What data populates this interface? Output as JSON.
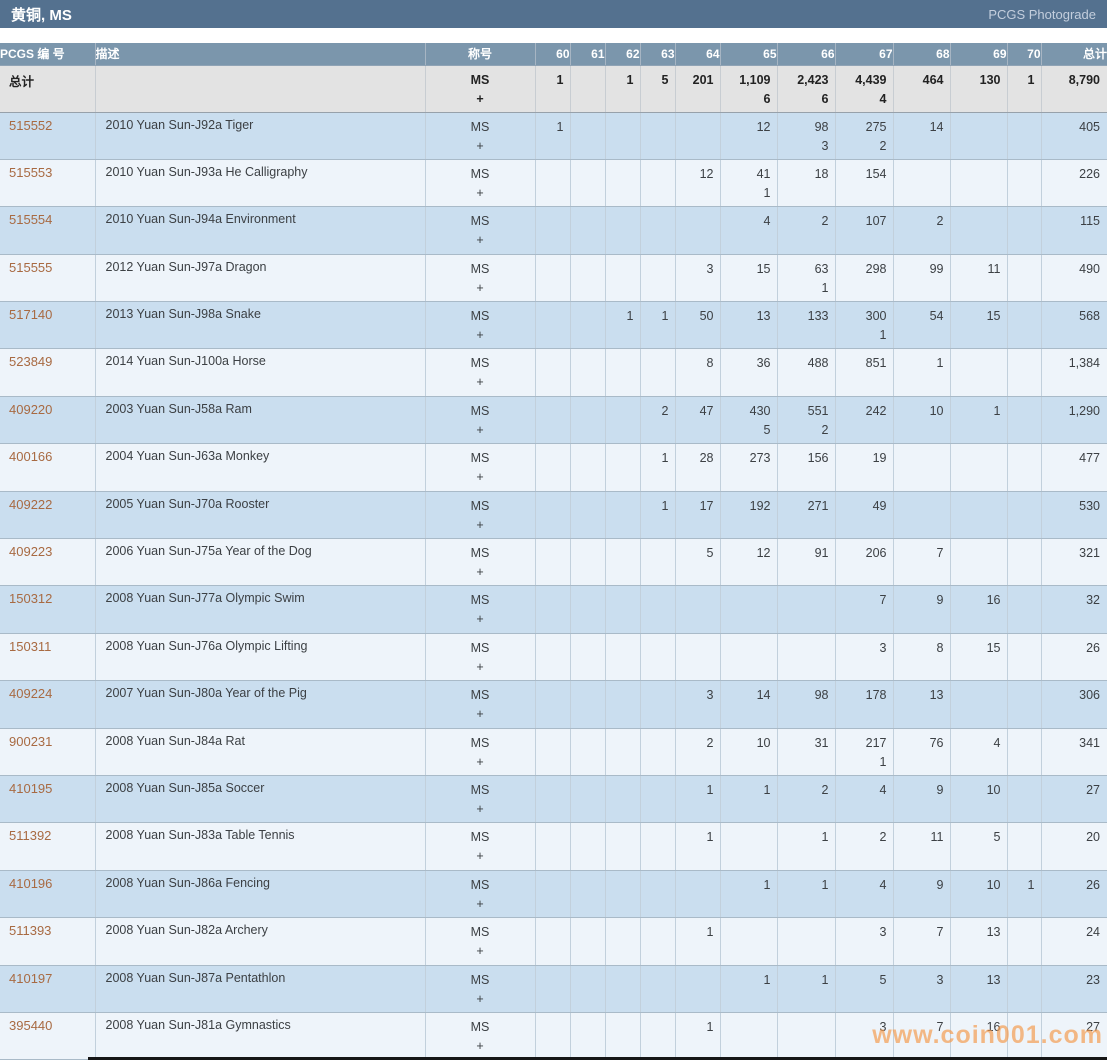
{
  "title_bar": {
    "title": "黄铜, MS",
    "link_label": "PCGS Photograde"
  },
  "colors": {
    "title_bar_bg": "#54718f",
    "header_bg": "#7b96ac",
    "row_blue": "#cadeef",
    "row_light": "#eef4fa",
    "total_row_bg": "#e3e3e3",
    "pcgs_link": "#a86a42",
    "watermark": "#f59b4d"
  },
  "table": {
    "headers": {
      "pcgs_no": "PCGS 编 号",
      "description": "描述",
      "designation": "称号",
      "grades": [
        "60",
        "61",
        "62",
        "63",
        "64",
        "65",
        "66",
        "67",
        "68",
        "69",
        "70"
      ],
      "total": "总计"
    },
    "designation_lines": [
      "MS",
      "+"
    ],
    "total_row": {
      "label": "总计",
      "grades": [
        [
          "1",
          ""
        ],
        [
          "",
          ""
        ],
        [
          "1",
          ""
        ],
        [
          "5",
          ""
        ],
        [
          "201",
          ""
        ],
        [
          "1,109",
          "6"
        ],
        [
          "2,423",
          "6"
        ],
        [
          "4,439",
          "4"
        ],
        [
          "464",
          ""
        ],
        [
          "130",
          ""
        ],
        [
          "1",
          ""
        ]
      ],
      "total": "8,790"
    },
    "rows": [
      {
        "pcgs_no": "515552",
        "description": "2010 Yuan Sun-J92a Tiger",
        "grades": [
          [
            "1",
            ""
          ],
          [
            "",
            ""
          ],
          [
            "",
            ""
          ],
          [
            "",
            ""
          ],
          [
            "",
            ""
          ],
          [
            "12",
            ""
          ],
          [
            "98",
            "3"
          ],
          [
            "275",
            "2"
          ],
          [
            "14",
            ""
          ],
          [
            "",
            ""
          ],
          [
            "",
            ""
          ]
        ],
        "total": "405"
      },
      {
        "pcgs_no": "515553",
        "description": "2010 Yuan Sun-J93a He Calligraphy",
        "grades": [
          [
            "",
            ""
          ],
          [
            "",
            ""
          ],
          [
            "",
            ""
          ],
          [
            "",
            ""
          ],
          [
            "12",
            ""
          ],
          [
            "41",
            "1"
          ],
          [
            "18",
            ""
          ],
          [
            "154",
            ""
          ],
          [
            "",
            ""
          ],
          [
            "",
            ""
          ],
          [
            "",
            ""
          ]
        ],
        "total": "226"
      },
      {
        "pcgs_no": "515554",
        "description": "2010 Yuan Sun-J94a Environment",
        "grades": [
          [
            "",
            ""
          ],
          [
            "",
            ""
          ],
          [
            "",
            ""
          ],
          [
            "",
            ""
          ],
          [
            "",
            ""
          ],
          [
            "4",
            ""
          ],
          [
            "2",
            ""
          ],
          [
            "107",
            ""
          ],
          [
            "2",
            ""
          ],
          [
            "",
            ""
          ],
          [
            "",
            ""
          ]
        ],
        "total": "115"
      },
      {
        "pcgs_no": "515555",
        "description": "2012 Yuan Sun-J97a Dragon",
        "grades": [
          [
            "",
            ""
          ],
          [
            "",
            ""
          ],
          [
            "",
            ""
          ],
          [
            "",
            ""
          ],
          [
            "3",
            ""
          ],
          [
            "15",
            ""
          ],
          [
            "63",
            "1"
          ],
          [
            "298",
            ""
          ],
          [
            "99",
            ""
          ],
          [
            "11",
            ""
          ],
          [
            "",
            ""
          ]
        ],
        "total": "490"
      },
      {
        "pcgs_no": "517140",
        "description": "2013 Yuan Sun-J98a Snake",
        "grades": [
          [
            "",
            ""
          ],
          [
            "",
            ""
          ],
          [
            "1",
            ""
          ],
          [
            "1",
            ""
          ],
          [
            "50",
            ""
          ],
          [
            "13",
            ""
          ],
          [
            "133",
            ""
          ],
          [
            "300",
            "1"
          ],
          [
            "54",
            ""
          ],
          [
            "15",
            ""
          ],
          [
            "",
            ""
          ]
        ],
        "total": "568"
      },
      {
        "pcgs_no": "523849",
        "description": "2014 Yuan Sun-J100a Horse",
        "grades": [
          [
            "",
            ""
          ],
          [
            "",
            ""
          ],
          [
            "",
            ""
          ],
          [
            "",
            ""
          ],
          [
            "8",
            ""
          ],
          [
            "36",
            ""
          ],
          [
            "488",
            ""
          ],
          [
            "851",
            ""
          ],
          [
            "1",
            ""
          ],
          [
            "",
            ""
          ],
          [
            "",
            ""
          ]
        ],
        "total": "1,384"
      },
      {
        "pcgs_no": "409220",
        "description": "2003 Yuan Sun-J58a Ram",
        "grades": [
          [
            "",
            ""
          ],
          [
            "",
            ""
          ],
          [
            "",
            ""
          ],
          [
            "2",
            ""
          ],
          [
            "47",
            ""
          ],
          [
            "430",
            "5"
          ],
          [
            "551",
            "2"
          ],
          [
            "242",
            ""
          ],
          [
            "10",
            ""
          ],
          [
            "1",
            ""
          ],
          [
            "",
            ""
          ]
        ],
        "total": "1,290"
      },
      {
        "pcgs_no": "400166",
        "description": "2004 Yuan Sun-J63a Monkey",
        "grades": [
          [
            "",
            ""
          ],
          [
            "",
            ""
          ],
          [
            "",
            ""
          ],
          [
            "1",
            ""
          ],
          [
            "28",
            ""
          ],
          [
            "273",
            ""
          ],
          [
            "156",
            ""
          ],
          [
            "19",
            ""
          ],
          [
            "",
            ""
          ],
          [
            "",
            ""
          ],
          [
            "",
            ""
          ]
        ],
        "total": "477"
      },
      {
        "pcgs_no": "409222",
        "description": "2005 Yuan Sun-J70a Rooster",
        "grades": [
          [
            "",
            ""
          ],
          [
            "",
            ""
          ],
          [
            "",
            ""
          ],
          [
            "1",
            ""
          ],
          [
            "17",
            ""
          ],
          [
            "192",
            ""
          ],
          [
            "271",
            ""
          ],
          [
            "49",
            ""
          ],
          [
            "",
            ""
          ],
          [
            "",
            ""
          ],
          [
            "",
            ""
          ]
        ],
        "total": "530"
      },
      {
        "pcgs_no": "409223",
        "description": "2006 Yuan Sun-J75a Year of the Dog",
        "grades": [
          [
            "",
            ""
          ],
          [
            "",
            ""
          ],
          [
            "",
            ""
          ],
          [
            "",
            ""
          ],
          [
            "5",
            ""
          ],
          [
            "12",
            ""
          ],
          [
            "91",
            ""
          ],
          [
            "206",
            ""
          ],
          [
            "7",
            ""
          ],
          [
            "",
            ""
          ],
          [
            "",
            ""
          ]
        ],
        "total": "321"
      },
      {
        "pcgs_no": "150312",
        "description": "2008 Yuan Sun-J77a Olympic Swim",
        "grades": [
          [
            "",
            ""
          ],
          [
            "",
            ""
          ],
          [
            "",
            ""
          ],
          [
            "",
            ""
          ],
          [
            "",
            ""
          ],
          [
            "",
            ""
          ],
          [
            "",
            ""
          ],
          [
            "7",
            ""
          ],
          [
            "9",
            ""
          ],
          [
            "16",
            ""
          ],
          [
            "",
            ""
          ]
        ],
        "total": "32"
      },
      {
        "pcgs_no": "150311",
        "description": "2008 Yuan Sun-J76a Olympic Lifting",
        "grades": [
          [
            "",
            ""
          ],
          [
            "",
            ""
          ],
          [
            "",
            ""
          ],
          [
            "",
            ""
          ],
          [
            "",
            ""
          ],
          [
            "",
            ""
          ],
          [
            "",
            ""
          ],
          [
            "3",
            ""
          ],
          [
            "8",
            ""
          ],
          [
            "15",
            ""
          ],
          [
            "",
            ""
          ]
        ],
        "total": "26"
      },
      {
        "pcgs_no": "409224",
        "description": "2007 Yuan Sun-J80a Year of the Pig",
        "grades": [
          [
            "",
            ""
          ],
          [
            "",
            ""
          ],
          [
            "",
            ""
          ],
          [
            "",
            ""
          ],
          [
            "3",
            ""
          ],
          [
            "14",
            ""
          ],
          [
            "98",
            ""
          ],
          [
            "178",
            ""
          ],
          [
            "13",
            ""
          ],
          [
            "",
            ""
          ],
          [
            "",
            ""
          ]
        ],
        "total": "306"
      },
      {
        "pcgs_no": "900231",
        "description": "2008 Yuan Sun-J84a Rat",
        "grades": [
          [
            "",
            ""
          ],
          [
            "",
            ""
          ],
          [
            "",
            ""
          ],
          [
            "",
            ""
          ],
          [
            "2",
            ""
          ],
          [
            "10",
            ""
          ],
          [
            "31",
            ""
          ],
          [
            "217",
            "1"
          ],
          [
            "76",
            ""
          ],
          [
            "4",
            ""
          ],
          [
            "",
            ""
          ]
        ],
        "total": "341"
      },
      {
        "pcgs_no": "410195",
        "description": "2008 Yuan Sun-J85a Soccer",
        "grades": [
          [
            "",
            ""
          ],
          [
            "",
            ""
          ],
          [
            "",
            ""
          ],
          [
            "",
            ""
          ],
          [
            "1",
            ""
          ],
          [
            "1",
            ""
          ],
          [
            "2",
            ""
          ],
          [
            "4",
            ""
          ],
          [
            "9",
            ""
          ],
          [
            "10",
            ""
          ],
          [
            "",
            ""
          ]
        ],
        "total": "27"
      },
      {
        "pcgs_no": "511392",
        "description": "2008 Yuan Sun-J83a Table Tennis",
        "grades": [
          [
            "",
            ""
          ],
          [
            "",
            ""
          ],
          [
            "",
            ""
          ],
          [
            "",
            ""
          ],
          [
            "1",
            ""
          ],
          [
            "",
            ""
          ],
          [
            "1",
            ""
          ],
          [
            "2",
            ""
          ],
          [
            "11",
            ""
          ],
          [
            "5",
            ""
          ],
          [
            "",
            ""
          ]
        ],
        "total": "20"
      },
      {
        "pcgs_no": "410196",
        "description": "2008 Yuan Sun-J86a Fencing",
        "grades": [
          [
            "",
            ""
          ],
          [
            "",
            ""
          ],
          [
            "",
            ""
          ],
          [
            "",
            ""
          ],
          [
            "",
            ""
          ],
          [
            "1",
            ""
          ],
          [
            "1",
            ""
          ],
          [
            "4",
            ""
          ],
          [
            "9",
            ""
          ],
          [
            "10",
            ""
          ],
          [
            "1",
            ""
          ]
        ],
        "total": "26"
      },
      {
        "pcgs_no": "511393",
        "description": "2008 Yuan Sun-J82a Archery",
        "grades": [
          [
            "",
            ""
          ],
          [
            "",
            ""
          ],
          [
            "",
            ""
          ],
          [
            "",
            ""
          ],
          [
            "1",
            ""
          ],
          [
            "",
            ""
          ],
          [
            "",
            ""
          ],
          [
            "3",
            ""
          ],
          [
            "7",
            ""
          ],
          [
            "13",
            ""
          ],
          [
            "",
            ""
          ]
        ],
        "total": "24"
      },
      {
        "pcgs_no": "410197",
        "description": "2008 Yuan Sun-J87a Pentathlon",
        "grades": [
          [
            "",
            ""
          ],
          [
            "",
            ""
          ],
          [
            "",
            ""
          ],
          [
            "",
            ""
          ],
          [
            "",
            ""
          ],
          [
            "1",
            ""
          ],
          [
            "1",
            ""
          ],
          [
            "5",
            ""
          ],
          [
            "3",
            ""
          ],
          [
            "13",
            ""
          ],
          [
            "",
            ""
          ]
        ],
        "total": "23"
      },
      {
        "pcgs_no": "395440",
        "description": "2008 Yuan Sun-J81a Gymnastics",
        "grades": [
          [
            "",
            ""
          ],
          [
            "",
            ""
          ],
          [
            "",
            ""
          ],
          [
            "",
            ""
          ],
          [
            "1",
            ""
          ],
          [
            "",
            ""
          ],
          [
            "",
            ""
          ],
          [
            "3",
            ""
          ],
          [
            "7",
            ""
          ],
          [
            "16",
            ""
          ],
          [
            "",
            ""
          ]
        ],
        "total": "27"
      }
    ]
  },
  "watermark": "www.coin001.com"
}
